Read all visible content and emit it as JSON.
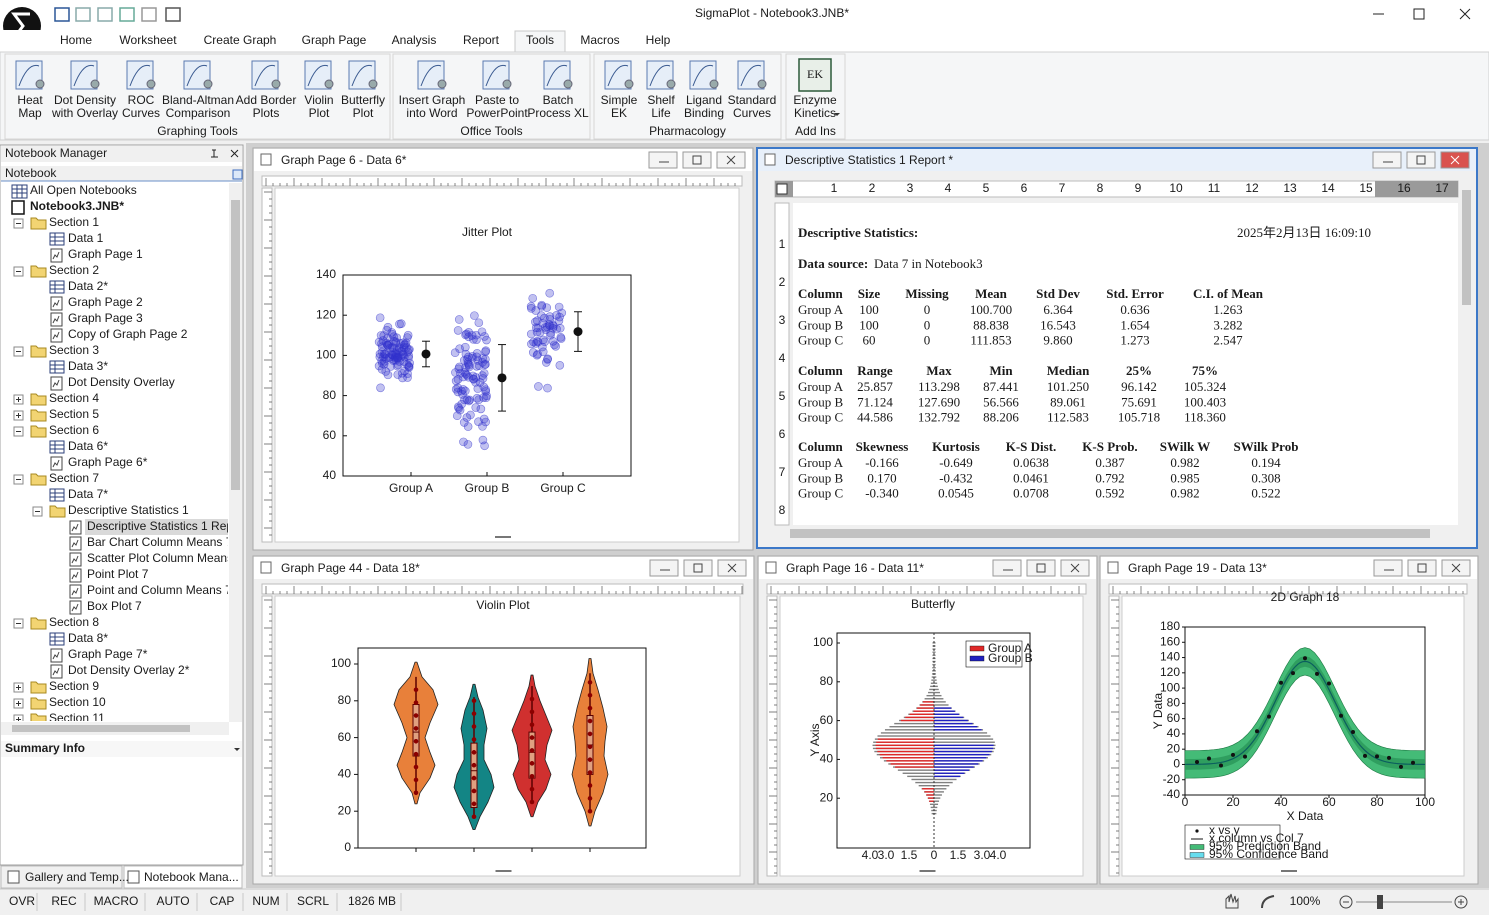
{
  "title_bar": {
    "title": "SigmaPlot - Notebook3.JNB*"
  },
  "tabs": {
    "items": [
      "Home",
      "Worksheet",
      "Create Graph",
      "Graph Page",
      "Analysis",
      "Report",
      "Tools",
      "Macros",
      "Help"
    ],
    "active": 6
  },
  "ribbon": {
    "groups": [
      {
        "label": "Graphing Tools",
        "buttons": [
          {
            "lines": [
              "Heat",
              "Map"
            ]
          },
          {
            "lines": [
              "Dot Density",
              "with Overlay"
            ]
          },
          {
            "lines": [
              "ROC",
              "Curves"
            ]
          },
          {
            "lines": [
              "Bland-Altman",
              "Comparison"
            ]
          },
          {
            "lines": [
              "Add Border",
              "Plots"
            ]
          },
          {
            "lines": [
              "Violin",
              "Plot"
            ]
          },
          {
            "lines": [
              "Butterfly",
              "Plot"
            ]
          }
        ]
      },
      {
        "label": "Office Tools",
        "buttons": [
          {
            "lines": [
              "Insert Graph",
              "into Word"
            ]
          },
          {
            "lines": [
              "Paste to",
              "PowerPoint"
            ]
          },
          {
            "lines": [
              "Batch",
              "Process XL"
            ]
          }
        ]
      },
      {
        "label": "Pharmacology",
        "buttons": [
          {
            "lines": [
              "Simple",
              "EK"
            ]
          },
          {
            "lines": [
              "Shelf",
              "Life"
            ]
          },
          {
            "lines": [
              "Ligand",
              "Binding"
            ]
          },
          {
            "lines": [
              "Standard",
              "Curves"
            ]
          }
        ]
      },
      {
        "label": "Add Ins",
        "buttons": [
          {
            "lines": [
              "Enzyme",
              "Kinetics"
            ],
            "icon_text": "EK"
          }
        ]
      }
    ]
  },
  "notebook_manager": {
    "title": "Notebook Manager",
    "header": "Notebook",
    "tree": {
      "root": "All Open Notebooks",
      "notebook": "Notebook3.JNB*",
      "selected": "Descriptive Statistics 1 Repo",
      "sections": [
        {
          "name": "Section 1",
          "items": [
            "Data 1",
            "Graph Page 1"
          ]
        },
        {
          "name": "Section 2",
          "items": [
            "Data 2*",
            "Graph Page 2",
            "Graph Page 3",
            "Copy of Graph Page 2"
          ]
        },
        {
          "name": "Section 3",
          "items": [
            "Data 3*",
            "Dot Density Overlay"
          ]
        },
        {
          "name": "Section 4"
        },
        {
          "name": "Section 5"
        },
        {
          "name": "Section 6",
          "items": [
            "Data 6*",
            "Graph Page 6*"
          ]
        },
        {
          "name": "Section 7",
          "items": [
            "Data 7*",
            {
              "name": "Descriptive Statistics 1",
              "items": [
                "Descriptive Statistics 1 Repo",
                "Bar Chart Column Means 7",
                "Scatter Plot Column Means 7",
                "Point Plot 7",
                "Point and Column Means 7",
                "Box Plot 7"
              ]
            }
          ]
        },
        {
          "name": "Section 8",
          "items": [
            "Data 8*",
            "Graph Page 7*",
            "Dot Density Overlay 2*"
          ]
        },
        {
          "name": "Section 9"
        },
        {
          "name": "Section 10"
        },
        {
          "name": "Section 11"
        }
      ]
    },
    "summary": "Summary Info",
    "tabs": [
      "Gallery and Temp...",
      "Notebook Mana..."
    ]
  },
  "windows": {
    "graph6": {
      "title": "Graph Page 6 - Data 6*",
      "chart": {
        "type": "jitter",
        "title": "Jitter Plot",
        "categories": [
          "Group A",
          "Group B",
          "Group C"
        ],
        "ylim": [
          40,
          140
        ],
        "yticks": [
          40,
          60,
          80,
          100,
          120,
          140
        ],
        "color": "#3333cc"
      }
    },
    "report": {
      "title": "Descriptive Statistics 1 Report *",
      "ruler": [
        1,
        2,
        3,
        4,
        5,
        6,
        7,
        8,
        9,
        10,
        11,
        12,
        13,
        14,
        15,
        16,
        17
      ],
      "vruler": [
        1,
        2,
        3,
        4,
        5,
        6,
        7,
        8
      ],
      "heading": "Descriptive Statistics:",
      "date": "2025年2月13日 16:09:10",
      "source_label": "Data source:",
      "source": "Data 7 in Notebook3",
      "tables": [
        {
          "header": [
            "Column",
            "Size",
            "Missing",
            "Mean",
            "Std Dev",
            "Std. Error",
            "C.I. of Mean"
          ],
          "rows": [
            [
              "Group A",
              "100",
              "0",
              "100.700",
              "6.364",
              "0.636",
              "1.263"
            ],
            [
              "Group B",
              "100",
              "0",
              "88.838",
              "16.543",
              "1.654",
              "3.282"
            ],
            [
              "Group C",
              "60",
              "0",
              "111.853",
              "9.860",
              "1.273",
              "2.547"
            ]
          ]
        },
        {
          "header": [
            "Column",
            "Range",
            "Max",
            "Min",
            "Median",
            "25%",
            "75%"
          ],
          "rows": [
            [
              "Group A",
              "25.857",
              "113.298",
              "87.441",
              "101.250",
              "96.142",
              "105.324"
            ],
            [
              "Group B",
              "71.124",
              "127.690",
              "56.566",
              "89.061",
              "75.691",
              "100.403"
            ],
            [
              "Group C",
              "44.586",
              "132.792",
              "88.206",
              "112.583",
              "105.718",
              "118.360"
            ]
          ]
        },
        {
          "header": [
            "Column",
            "Skewness",
            "Kurtosis",
            "K-S Dist.",
            "K-S Prob.",
            "SWilk W",
            "SWilk Prob"
          ],
          "rows": [
            [
              "Group A",
              "-0.166",
              "-0.649",
              "0.0638",
              "0.387",
              "0.982",
              "0.194"
            ],
            [
              "Group B",
              "0.170",
              "-0.432",
              "0.0461",
              "0.792",
              "0.985",
              "0.308"
            ],
            [
              "Group C",
              "-0.340",
              "0.0545",
              "0.0708",
              "0.592",
              "0.982",
              "0.522"
            ]
          ]
        }
      ]
    },
    "graph44": {
      "title": "Graph Page 44 - Data 18*",
      "chart": {
        "type": "violin",
        "title": "Violin Plot",
        "ylim": [
          0,
          100
        ],
        "yticks": [
          0,
          20,
          40,
          60,
          80,
          100
        ],
        "colors": [
          "#e8803a",
          "#138585",
          "#d0302f",
          "#e8803a"
        ]
      }
    },
    "graph16": {
      "title": "Graph Page 16 - Data 11*",
      "chart": {
        "type": "butterfly",
        "title": "Butterfly",
        "ylabel": "Y Axis",
        "ylim": [
          0,
          100
        ],
        "yticks": [
          20,
          40,
          60,
          80,
          100
        ],
        "xtick_labels": [
          "4.0",
          "3.0",
          "1.5",
          "0",
          "1.5",
          "3.0",
          "4.0"
        ],
        "series": [
          {
            "name": "Group A",
            "color": "#e02828"
          },
          {
            "name": "Group B",
            "color": "#2020c0"
          }
        ]
      }
    },
    "graph19": {
      "title": "Graph Page 19 - Data 13*",
      "chart": {
        "type": "fit",
        "title": "2D Graph 18",
        "xlabel": "X Data",
        "ylabel": "Y Data",
        "xlim": [
          0,
          100
        ],
        "ylim": [
          -40,
          180
        ],
        "xticks": [
          0,
          20,
          40,
          60,
          80,
          100
        ],
        "yticks": [
          -40,
          -20,
          0,
          20,
          40,
          60,
          80,
          100,
          120,
          140,
          160,
          180
        ],
        "legend": [
          "x vs y",
          "x column vs Col 7",
          "95% Prediction Band",
          "95% Confidence Band"
        ]
      }
    }
  },
  "status_bar": {
    "items": [
      "OVR",
      "REC",
      "MACRO",
      "AUTO",
      "CAP",
      "NUM",
      "SCRL",
      "1826 MB"
    ],
    "zoom": "100%"
  }
}
